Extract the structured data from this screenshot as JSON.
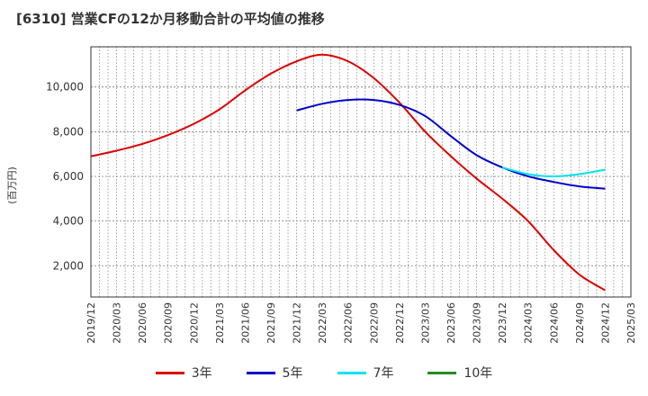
{
  "title": "[6310]  営業CFの12か月移動合計の平均値の推移",
  "unit": "(百万円)",
  "chart_data": {
    "type": "line",
    "title": "[6310]  営業CFの12か月移動合計の平均値の推移",
    "ylabel": "(百万円)",
    "xlabel": "",
    "ylim": [
      600,
      11800
    ],
    "yticks": [
      2000,
      4000,
      6000,
      8000,
      10000
    ],
    "ytick_labels": [
      "2,000",
      "4,000",
      "6,000",
      "8,000",
      "10,000"
    ],
    "x_ticks": [
      "2019/12",
      "2020/03",
      "2020/06",
      "2020/09",
      "2020/12",
      "2021/03",
      "2021/06",
      "2021/09",
      "2021/12",
      "2022/03",
      "2022/06",
      "2022/09",
      "2022/12",
      "2023/03",
      "2023/06",
      "2023/09",
      "2023/12",
      "2024/03",
      "2024/06",
      "2024/09",
      "2024/12",
      "2025/03"
    ],
    "grid": true,
    "legend_position": "bottom",
    "series": [
      {
        "name": "3年",
        "color": "#dd0000",
        "points": [
          [
            "2019/12",
            6900
          ],
          [
            "2020/03",
            7150
          ],
          [
            "2020/06",
            7450
          ],
          [
            "2020/09",
            7850
          ],
          [
            "2020/12",
            8350
          ],
          [
            "2021/03",
            9000
          ],
          [
            "2021/06",
            9850
          ],
          [
            "2021/09",
            10600
          ],
          [
            "2021/12",
            11150
          ],
          [
            "2022/03",
            11450
          ],
          [
            "2022/06",
            11150
          ],
          [
            "2022/09",
            10400
          ],
          [
            "2022/12",
            9300
          ],
          [
            "2023/03",
            8000
          ],
          [
            "2023/06",
            6900
          ],
          [
            "2023/09",
            5900
          ],
          [
            "2023/12",
            5000
          ],
          [
            "2024/03",
            4000
          ],
          [
            "2024/06",
            2700
          ],
          [
            "2024/09",
            1600
          ],
          [
            "2024/12",
            900
          ]
        ]
      },
      {
        "name": "5年",
        "color": "#0000cc",
        "points": [
          [
            "2021/12",
            8950
          ],
          [
            "2022/03",
            9250
          ],
          [
            "2022/06",
            9420
          ],
          [
            "2022/09",
            9420
          ],
          [
            "2022/12",
            9200
          ],
          [
            "2023/03",
            8700
          ],
          [
            "2023/06",
            7800
          ],
          [
            "2023/09",
            6950
          ],
          [
            "2023/12",
            6400
          ],
          [
            "2024/03",
            6000
          ],
          [
            "2024/06",
            5750
          ],
          [
            "2024/09",
            5550
          ],
          [
            "2024/12",
            5450
          ]
        ]
      },
      {
        "name": "7年",
        "color": "#00e5ee",
        "points": [
          [
            "2023/12",
            6400
          ],
          [
            "2024/03",
            6100
          ],
          [
            "2024/06",
            6000
          ],
          [
            "2024/09",
            6100
          ],
          [
            "2024/12",
            6300
          ]
        ]
      },
      {
        "name": "10年",
        "color": "#228b22",
        "points": []
      }
    ]
  }
}
